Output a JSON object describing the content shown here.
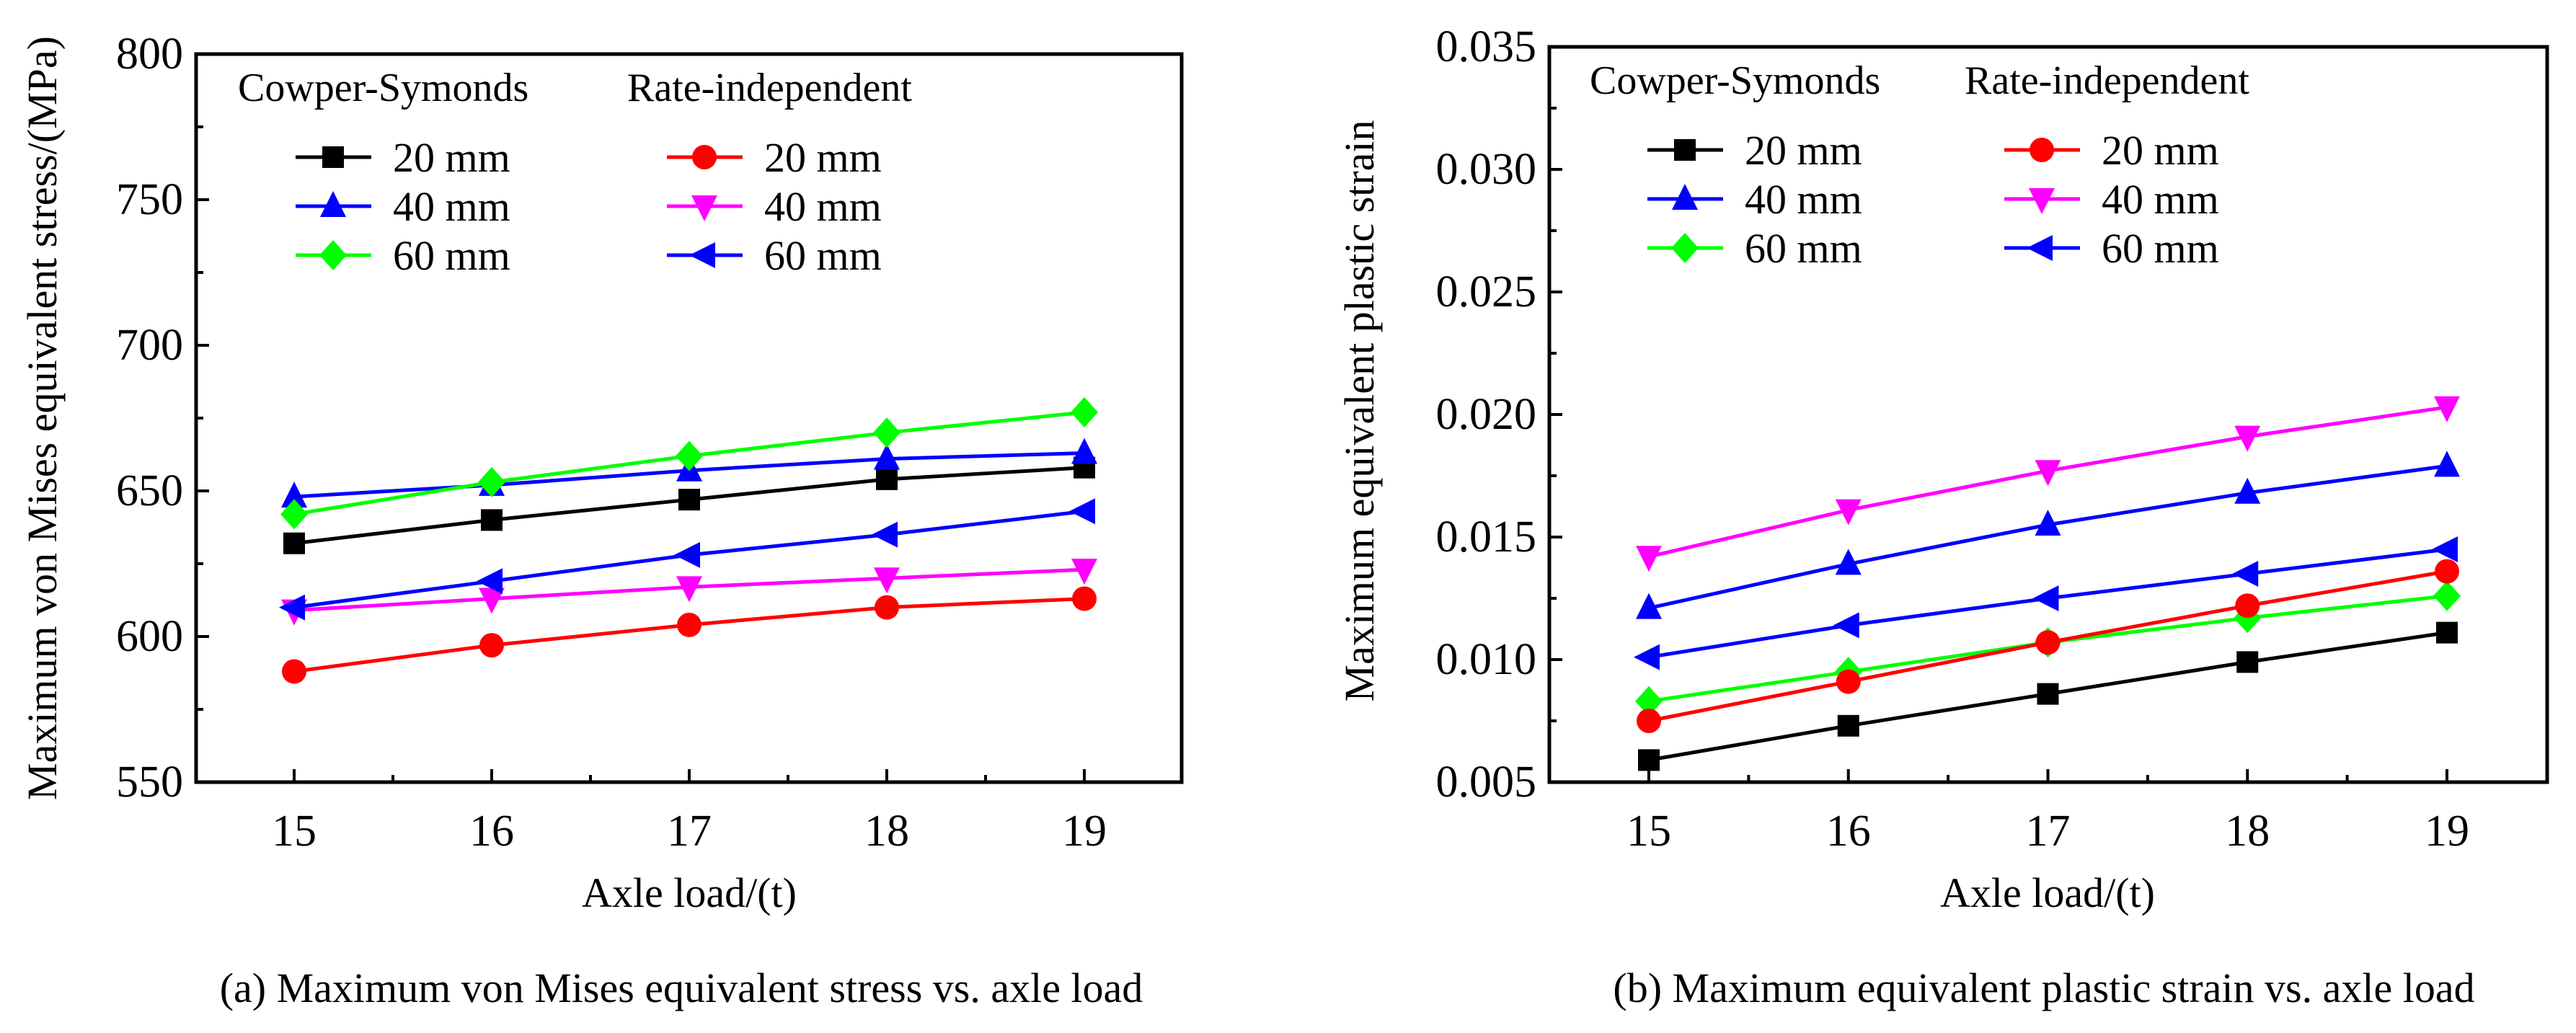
{
  "figure": {
    "panels": [
      "a",
      "b"
    ]
  },
  "chart_data": [
    {
      "id": "a",
      "type": "line",
      "title": "",
      "caption": "(a) Maximum von Mises equivalent stress vs. axle load",
      "xlabel": "Axle load/(t)",
      "ylabel": "Maximum von Mises equivalent stress/(MPa)",
      "x": [
        15,
        16,
        17,
        18,
        19
      ],
      "xlim": [
        14.5,
        19.5
      ],
      "ylim": [
        550,
        800
      ],
      "xticks": [
        "15",
        "16",
        "17",
        "18",
        "19"
      ],
      "yticks": [
        "550",
        "600",
        "650",
        "700",
        "750",
        "800"
      ],
      "ytick_values": [
        550,
        600,
        650,
        700,
        750,
        800
      ],
      "grid": false,
      "legend_placement": "top-left",
      "legend_groups": [
        "Cowper-Symonds",
        "Rate-independent"
      ],
      "series": [
        {
          "name": "Cowper-Symonds 20 mm",
          "label": "20 mm",
          "group": 0,
          "color": "#000000",
          "marker": "square",
          "values": [
            632,
            640,
            647,
            654,
            658
          ]
        },
        {
          "name": "Cowper-Symonds 40 mm",
          "label": "40 mm",
          "group": 0,
          "color": "#0000ff",
          "marker": "triangle-up",
          "values": [
            648,
            652,
            657,
            661,
            663
          ]
        },
        {
          "name": "Cowper-Symonds 60 mm",
          "label": "60 mm",
          "group": 0,
          "color": "#00ff00",
          "marker": "diamond",
          "values": [
            642,
            653,
            662,
            670,
            677
          ]
        },
        {
          "name": "Rate-independent 20 mm",
          "label": "20 mm",
          "group": 1,
          "color": "#ff0000",
          "marker": "circle",
          "values": [
            588,
            597,
            604,
            610,
            613
          ]
        },
        {
          "name": "Rate-independent 40 mm",
          "label": "40 mm",
          "group": 1,
          "color": "#ff00ff",
          "marker": "triangle-down",
          "values": [
            609,
            613,
            617,
            620,
            623
          ]
        },
        {
          "name": "Rate-independent 60 mm",
          "label": "60 mm",
          "group": 1,
          "color": "#0000ff",
          "marker": "triangle-left",
          "values": [
            610,
            619,
            628,
            635,
            643
          ]
        }
      ]
    },
    {
      "id": "b",
      "type": "line",
      "title": "",
      "caption": "(b) Maximum equivalent plastic strain vs. axle load",
      "xlabel": "Axle load/(t)",
      "ylabel": "Maximum equivalent plastic strain",
      "x": [
        15,
        16,
        17,
        18,
        19
      ],
      "xlim": [
        14.5,
        19.5
      ],
      "ylim": [
        0.005,
        0.035
      ],
      "xticks": [
        "15",
        "16",
        "17",
        "18",
        "19"
      ],
      "yticks": [
        "0.005",
        "0.010",
        "0.015",
        "0.020",
        "0.025",
        "0.030",
        "0.035"
      ],
      "ytick_values": [
        0.005,
        0.01,
        0.015,
        0.02,
        0.025,
        0.03,
        0.035
      ],
      "grid": false,
      "legend_placement": "top-left",
      "legend_groups": [
        "Cowper-Symonds",
        "Rate-independent"
      ],
      "series": [
        {
          "name": "Cowper-Symonds 20 mm",
          "label": "20 mm",
          "group": 0,
          "color": "#000000",
          "marker": "square",
          "values": [
            0.0059,
            0.0073,
            0.0086,
            0.0099,
            0.0111
          ]
        },
        {
          "name": "Cowper-Symonds 40 mm",
          "label": "40 mm",
          "group": 0,
          "color": "#0000ff",
          "marker": "triangle-up",
          "values": [
            0.0121,
            0.0139,
            0.0155,
            0.0168,
            0.0179
          ]
        },
        {
          "name": "Cowper-Symonds 60 mm",
          "label": "60 mm",
          "group": 0,
          "color": "#00ff00",
          "marker": "diamond",
          "values": [
            0.0083,
            0.0095,
            0.0107,
            0.0117,
            0.0126
          ]
        },
        {
          "name": "Rate-independent 20 mm",
          "label": "20 mm",
          "group": 1,
          "color": "#ff0000",
          "marker": "circle",
          "values": [
            0.0075,
            0.0091,
            0.0107,
            0.0122,
            0.0136
          ]
        },
        {
          "name": "Rate-independent 40 mm",
          "label": "40 mm",
          "group": 1,
          "color": "#ff00ff",
          "marker": "triangle-down",
          "values": [
            0.0142,
            0.0161,
            0.0177,
            0.0191,
            0.0203
          ]
        },
        {
          "name": "Rate-independent 60 mm",
          "label": "60 mm",
          "group": 1,
          "color": "#0000ff",
          "marker": "triangle-left",
          "values": [
            0.0101,
            0.0114,
            0.0125,
            0.0135,
            0.0145
          ]
        }
      ]
    }
  ]
}
